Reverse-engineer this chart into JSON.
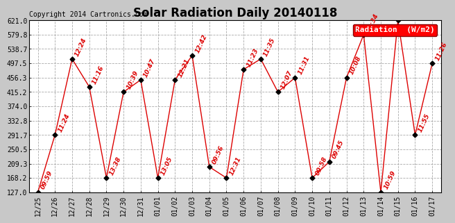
{
  "title": "Solar Radiation Daily 20140118",
  "copyright": "Copyright 2014 Cartronics.com",
  "legend_label": "Radiation  (W/m2)",
  "ylim": [
    127.0,
    621.0
  ],
  "yticks": [
    127.0,
    168.2,
    209.3,
    250.5,
    291.7,
    332.8,
    374.0,
    415.2,
    456.3,
    497.5,
    538.7,
    579.8,
    621.0
  ],
  "x_labels": [
    "12/25",
    "12/26",
    "12/27",
    "12/28",
    "12/29",
    "12/30",
    "12/31",
    "01/01",
    "01/02",
    "01/03",
    "01/04",
    "01/05",
    "01/06",
    "01/07",
    "01/08",
    "01/09",
    "01/10",
    "01/11",
    "01/12",
    "01/13",
    "01/14",
    "01/15",
    "01/16",
    "01/17"
  ],
  "values": [
    127.0,
    291.7,
    510.0,
    430.0,
    168.2,
    415.2,
    450.0,
    168.2,
    450.0,
    520.0,
    200.0,
    168.2,
    480.0,
    510.0,
    415.2,
    456.3,
    168.2,
    215.0,
    456.3,
    579.8,
    127.0,
    621.0,
    291.7,
    497.5
  ],
  "time_labels": [
    "09:59",
    "11:24",
    "12:24",
    "11:16",
    "13:38",
    "10:39",
    "10:47",
    "13:05",
    "12:21",
    "12:42",
    "09:56",
    "12:31",
    "11:23",
    "11:35",
    "12:07",
    "11:31",
    "09:58",
    "09:45",
    "10:08",
    "12:34",
    "10:59",
    "",
    "11:55",
    "11:26"
  ],
  "bg_color": "#c8c8c8",
  "plot_bg": "#ffffff",
  "line_color": "#dd0000",
  "marker_color": "#000000",
  "label_color": "#dd0000",
  "grid_color": "#aaaaaa",
  "title_fontsize": 12,
  "copyright_fontsize": 7,
  "label_fontsize": 6.5,
  "tick_fontsize": 7,
  "legend_fontsize": 8
}
